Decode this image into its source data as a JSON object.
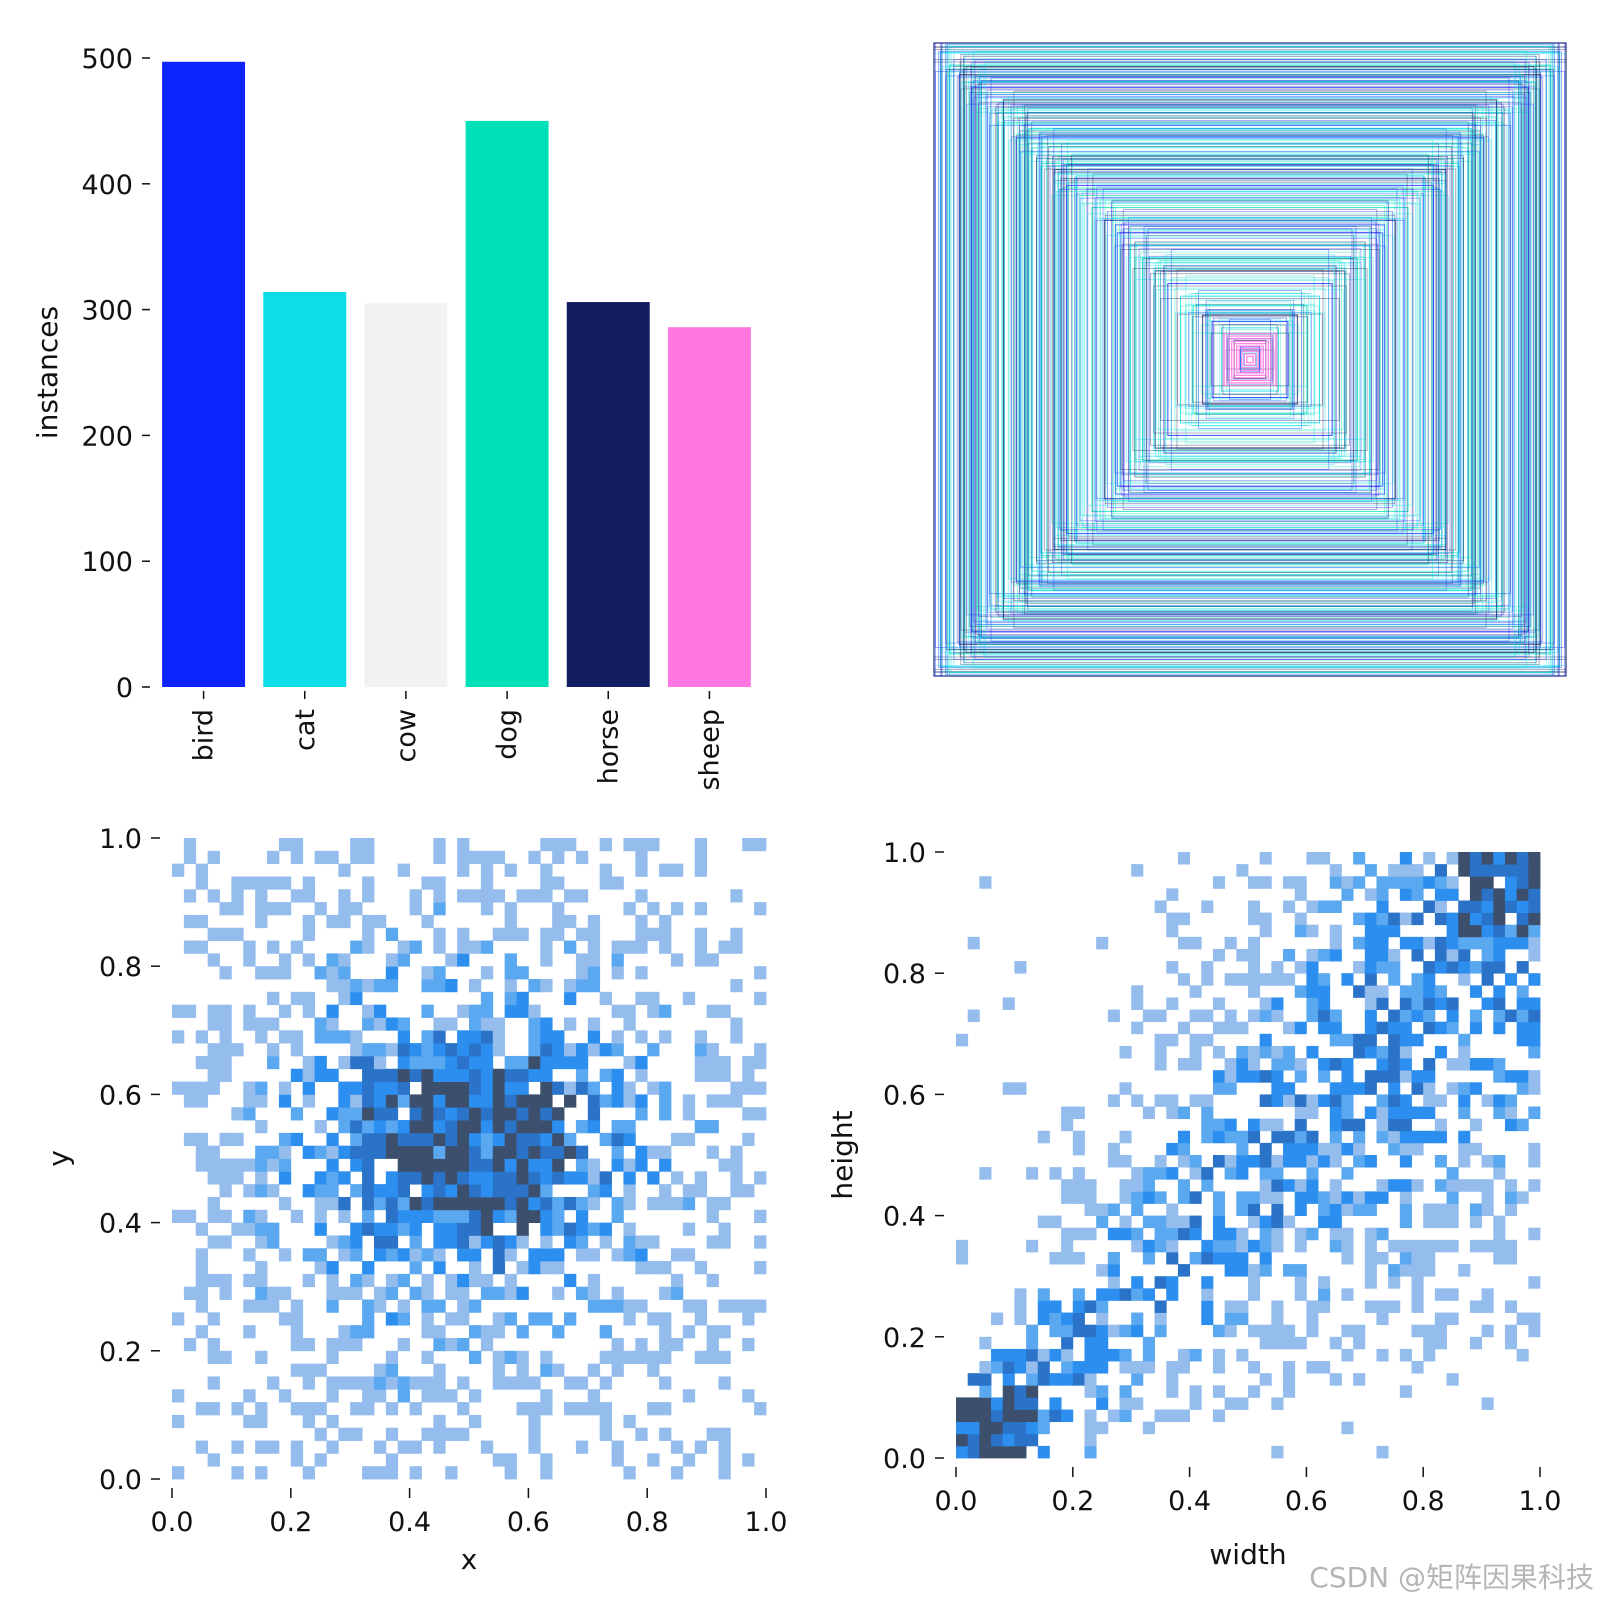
{
  "chart_data": [
    {
      "type": "bar",
      "categories": [
        "bird",
        "cat",
        "cow",
        "dog",
        "horse",
        "sheep"
      ],
      "values": [
        497,
        314,
        305,
        450,
        306,
        286
      ],
      "colors": [
        "#0d24ff",
        "#0cdde8",
        "#f2f2f2",
        "#00e0b8",
        "#121c60",
        "#ff76e0"
      ],
      "xlabel": "",
      "ylabel": "instances",
      "ylim": [
        0,
        500
      ],
      "yticks": [
        "0",
        "100",
        "200",
        "300",
        "400",
        "500"
      ],
      "grid": false,
      "legend": "none"
    },
    {
      "type": "scatter",
      "subtype": "nested-box-outlines",
      "description_of_marks": "centered rectangles of label box sizes",
      "xlim": [
        0,
        1
      ],
      "ylim": [
        0,
        1
      ],
      "colors": [
        "#0d24ff",
        "#0cdde8",
        "#00e0b8",
        "#121c60",
        "#ff76e0"
      ],
      "box_sizes": [
        [
          1.0,
          1.0
        ],
        [
          0.98,
          0.97
        ],
        [
          0.95,
          0.93
        ],
        [
          0.92,
          0.9
        ],
        [
          0.88,
          0.86
        ],
        [
          0.85,
          0.88
        ],
        [
          0.8,
          0.78
        ],
        [
          0.78,
          0.82
        ],
        [
          0.74,
          0.7
        ],
        [
          0.7,
          0.73
        ],
        [
          0.66,
          0.62
        ],
        [
          0.62,
          0.6
        ],
        [
          0.58,
          0.55
        ],
        [
          0.55,
          0.58
        ],
        [
          0.5,
          0.48
        ],
        [
          0.46,
          0.44
        ],
        [
          0.42,
          0.4
        ],
        [
          0.38,
          0.36
        ],
        [
          0.34,
          0.32
        ],
        [
          0.3,
          0.28
        ],
        [
          0.26,
          0.24
        ],
        [
          0.22,
          0.2
        ],
        [
          0.18,
          0.17
        ],
        [
          0.15,
          0.14
        ],
        [
          0.12,
          0.12
        ],
        [
          0.09,
          0.1
        ],
        [
          0.07,
          0.08
        ],
        [
          0.05,
          0.06
        ],
        [
          0.03,
          0.04
        ],
        [
          0.02,
          0.02
        ]
      ],
      "grid": false
    },
    {
      "type": "heatmap",
      "xlabel": "x",
      "ylabel": "y",
      "xlim": [
        0,
        1
      ],
      "ylim": [
        0,
        1
      ],
      "xticks": [
        "0.0",
        "0.2",
        "0.4",
        "0.6",
        "0.8",
        "1.0"
      ],
      "yticks": [
        "0.0",
        "0.2",
        "0.4",
        "0.6",
        "0.8",
        "1.0"
      ],
      "bins": 50,
      "colors": [
        "#94bdee",
        "#5aa8f0",
        "#2c8ff0",
        "#2a73c8",
        "#3c506e"
      ],
      "distribution": {
        "peak_x": 0.5,
        "peak_y": 0.52,
        "spread_x": 0.13,
        "spread_y": 0.1,
        "background_density": 0.2
      },
      "grid": false
    },
    {
      "type": "heatmap",
      "xlabel": "width",
      "ylabel": "height",
      "xlim": [
        0,
        1
      ],
      "ylim": [
        0,
        1
      ],
      "xticks": [
        "0.0",
        "0.2",
        "0.4",
        "0.6",
        "0.8",
        "1.0"
      ],
      "yticks": [
        "0.0",
        "0.2",
        "0.4",
        "0.6",
        "0.8",
        "1.0"
      ],
      "bins": 50,
      "colors": [
        "#94bdee",
        "#5aa8f0",
        "#2c8ff0",
        "#2a73c8",
        "#3c506e"
      ],
      "distribution": {
        "peak_x": 0.05,
        "peak_y": 0.06,
        "trend": "height roughly tracks width, spread widens with size"
      },
      "grid": false
    }
  ],
  "watermark": "CSDN @矩阵因果科技"
}
